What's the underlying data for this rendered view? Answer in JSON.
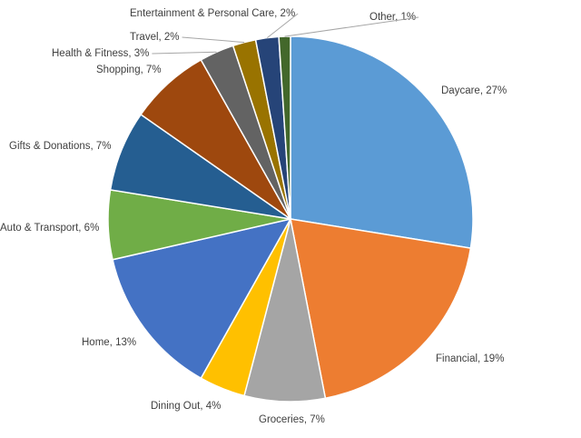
{
  "chart_data": {
    "type": "pie",
    "values": [
      27,
      19,
      7,
      4,
      13,
      6,
      7,
      7,
      3,
      2,
      2,
      1
    ],
    "value_labels": [
      "Daycare, 27%",
      "Financial, 19%",
      "Groceries, 7%",
      "Dining Out, 4%",
      "Home, 13%",
      "Auto & Transport, 6%",
      "Gifts & Donations, 7%",
      "Shopping, 7%",
      "Health & Fitness, 3%",
      "Travel, 2%",
      "Entertainment & Personal Care, 2%",
      "Other, 1%"
    ],
    "colors": [
      "#5b9bd5",
      "#ed7d31",
      "#a5a5a5",
      "#ffc000",
      "#4472c4",
      "#70ad47",
      "#255e91",
      "#9e480e",
      "#636363",
      "#997300",
      "#264478",
      "#43682b"
    ]
  }
}
